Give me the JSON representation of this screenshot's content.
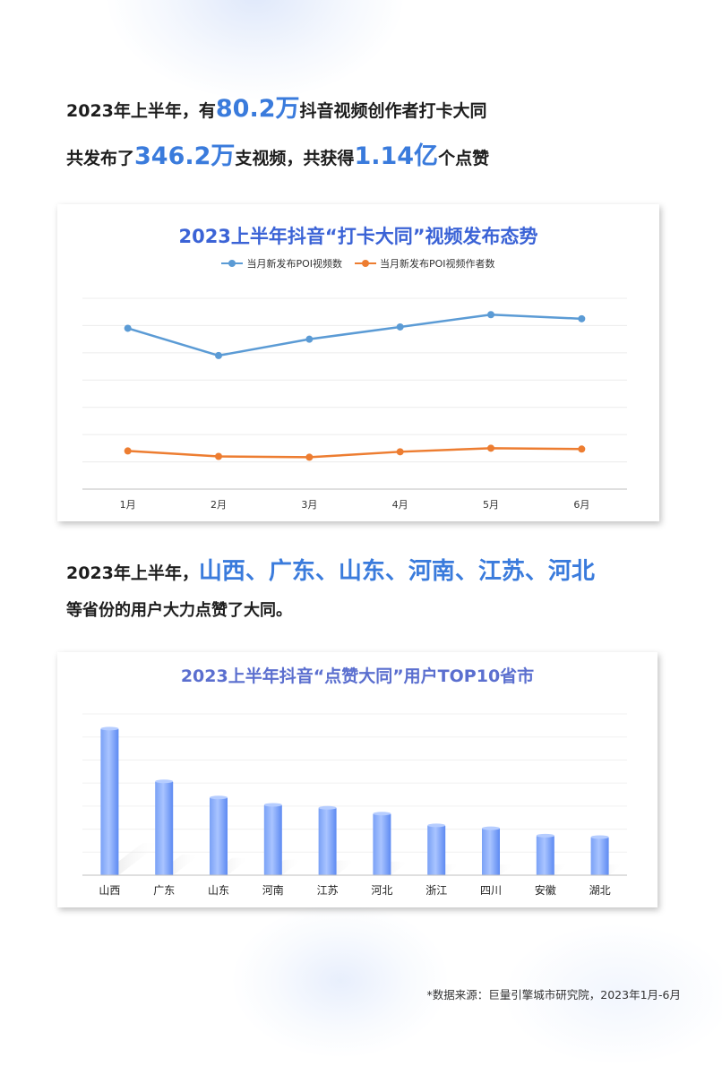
{
  "headline": {
    "l1_a": "2023年上半年，有",
    "l1_b": "80.2万",
    "l1_c": "抖音视频创作者打卡大同",
    "l2_a": "共发布了",
    "l2_b": "346.2万",
    "l2_c": "支视频，共获得",
    "l2_d": "1.14亿",
    "l2_e": "个点赞",
    "l3_a": "2023年上半年，",
    "l3_b": "山西、广东、山东、河南、江苏、河北",
    "l4": "等省份的用户大力点赞了大同。"
  },
  "colors": {
    "accent": "#3a7bdc",
    "series_blue": "#5b9bd5",
    "series_orange": "#ed7d31",
    "bar_top": "#8fb2ff",
    "bar_bottom": "#4d7ff0"
  },
  "chart_data": [
    {
      "type": "line",
      "title": "2023上半年抖音“打卡大同”视频发布态势",
      "categories": [
        "1月",
        "2月",
        "3月",
        "4月",
        "5月",
        "6月"
      ],
      "series": [
        {
          "name": "当月新发布POI视频数",
          "values": [
            59,
            49,
            55,
            59.5,
            64,
            62.5
          ]
        },
        {
          "name": "当月新发布POI视频作者数",
          "values": [
            14,
            12,
            11.7,
            13.7,
            15,
            14.7
          ]
        }
      ],
      "ylim": [
        0,
        70
      ],
      "grid": true,
      "legend": "top"
    },
    {
      "type": "bar",
      "title": "2023上半年抖音“点赞大同”用户TOP10省市",
      "categories": [
        "山西",
        "广东",
        "山东",
        "河南",
        "江苏",
        "河北",
        "浙江",
        "四川",
        "安徽",
        "湖北"
      ],
      "values": [
        100,
        64,
        53,
        48,
        46,
        42,
        34,
        32,
        27,
        26
      ],
      "ylim": [
        0,
        110
      ],
      "grid": true
    }
  ],
  "source": "*数据来源：巨量引擎城市研究院，2023年1月-6月"
}
